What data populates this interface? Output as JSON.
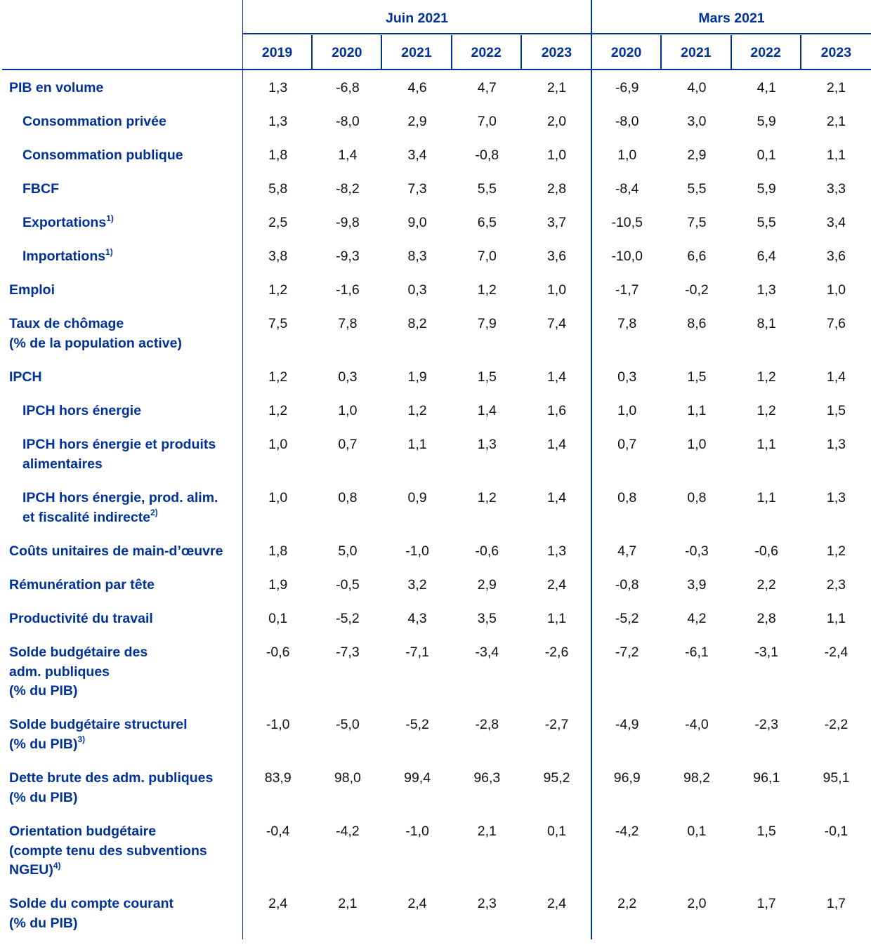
{
  "header": {
    "groups": [
      "Juin 2021",
      "Mars 2021"
    ],
    "years": [
      "2019",
      "2020",
      "2021",
      "2022",
      "2023",
      "2020",
      "2021",
      "2022",
      "2023"
    ]
  },
  "colors": {
    "accent": "#003299",
    "text": "#111111"
  },
  "rows": [
    {
      "label": [
        "PIB en volume"
      ],
      "sup": "",
      "indent": false,
      "values": [
        "1,3",
        "-6,8",
        "4,6",
        "4,7",
        "2,1",
        "-6,9",
        "4,0",
        "4,1",
        "2,1"
      ]
    },
    {
      "label": [
        "Consommation privée"
      ],
      "sup": "",
      "indent": true,
      "values": [
        "1,3",
        "-8,0",
        "2,9",
        "7,0",
        "2,0",
        "-8,0",
        "3,0",
        "5,9",
        "2,1"
      ]
    },
    {
      "label": [
        "Consommation publique"
      ],
      "sup": "",
      "indent": true,
      "values": [
        "1,8",
        "1,4",
        "3,4",
        "-0,8",
        "1,0",
        "1,0",
        "2,9",
        "0,1",
        "1,1"
      ]
    },
    {
      "label": [
        "FBCF"
      ],
      "sup": "",
      "indent": true,
      "values": [
        "5,8",
        "-8,2",
        "7,3",
        "5,5",
        "2,8",
        "-8,4",
        "5,5",
        "5,9",
        "3,3"
      ]
    },
    {
      "label": [
        "Exportations"
      ],
      "sup": "1)",
      "indent": true,
      "values": [
        "2,5",
        "-9,8",
        "9,0",
        "6,5",
        "3,7",
        "-10,5",
        "7,5",
        "5,5",
        "3,4"
      ]
    },
    {
      "label": [
        "Importations"
      ],
      "sup": "1)",
      "indent": true,
      "values": [
        "3,8",
        "-9,3",
        "8,3",
        "7,0",
        "3,6",
        "-10,0",
        "6,6",
        "6,4",
        "3,6"
      ]
    },
    {
      "label": [
        "Emploi"
      ],
      "sup": "",
      "indent": false,
      "values": [
        "1,2",
        "-1,6",
        "0,3",
        "1,2",
        "1,0",
        "-1,7",
        "-0,2",
        "1,3",
        "1,0"
      ]
    },
    {
      "label": [
        "Taux de chômage",
        "(% de la population active)"
      ],
      "sup": "",
      "indent": false,
      "values": [
        "7,5",
        "7,8",
        "8,2",
        "7,9",
        "7,4",
        "7,8",
        "8,6",
        "8,1",
        "7,6"
      ]
    },
    {
      "label": [
        "IPCH"
      ],
      "sup": "",
      "indent": false,
      "values": [
        "1,2",
        "0,3",
        "1,9",
        "1,5",
        "1,4",
        "0,3",
        "1,5",
        "1,2",
        "1,4"
      ]
    },
    {
      "label": [
        "IPCH hors énergie"
      ],
      "sup": "",
      "indent": true,
      "values": [
        "1,2",
        "1,0",
        "1,2",
        "1,4",
        "1,6",
        "1,0",
        "1,1",
        "1,2",
        "1,5"
      ]
    },
    {
      "label": [
        "IPCH hors énergie et produits",
        "alimentaires"
      ],
      "sup": "",
      "indent": true,
      "values": [
        "1,0",
        "0,7",
        "1,1",
        "1,3",
        "1,4",
        "0,7",
        "1,0",
        "1,1",
        "1,3"
      ]
    },
    {
      "label": [
        "IPCH hors énergie, prod. alim.",
        "et fiscalité indirecte"
      ],
      "sup": "2)",
      "indent": true,
      "values": [
        "1,0",
        "0,8",
        "0,9",
        "1,2",
        "1,4",
        "0,8",
        "0,8",
        "1,1",
        "1,3"
      ]
    },
    {
      "label": [
        "Coûts unitaires de main-d’œuvre"
      ],
      "sup": "",
      "indent": false,
      "values": [
        "1,8",
        "5,0",
        "-1,0",
        "-0,6",
        "1,3",
        "4,7",
        "-0,3",
        "-0,6",
        "1,2"
      ]
    },
    {
      "label": [
        "Rémunération par tête"
      ],
      "sup": "",
      "indent": false,
      "values": [
        "1,9",
        "-0,5",
        "3,2",
        "2,9",
        "2,4",
        "-0,8",
        "3,9",
        "2,2",
        "2,3"
      ]
    },
    {
      "label": [
        "Productivité du travail"
      ],
      "sup": "",
      "indent": false,
      "values": [
        "0,1",
        "-5,2",
        "4,3",
        "3,5",
        "1,1",
        "-5,2",
        "4,2",
        "2,8",
        "1,1"
      ]
    },
    {
      "label": [
        "Solde budgétaire des",
        "adm. publiques",
        "(% du PIB)"
      ],
      "sup": "",
      "indent": false,
      "values": [
        "-0,6",
        "-7,3",
        "-7,1",
        "-3,4",
        "-2,6",
        "-7,2",
        "-6,1",
        "-3,1",
        "-2,4"
      ]
    },
    {
      "label": [
        "Solde budgétaire structurel",
        "(% du PIB)"
      ],
      "sup": "3)",
      "indent": false,
      "values": [
        "-1,0",
        "-5,0",
        "-5,2",
        "-2,8",
        "-2,7",
        "-4,9",
        "-4,0",
        "-2,3",
        "-2,2"
      ]
    },
    {
      "label": [
        "Dette brute des adm. publiques",
        "(% du PIB)"
      ],
      "sup": "",
      "indent": false,
      "values": [
        "83,9",
        "98,0",
        "99,4",
        "96,3",
        "95,2",
        "96,9",
        "98,2",
        "96,1",
        "95,1"
      ]
    },
    {
      "label": [
        "Orientation budgétaire",
        "(compte tenu des subventions",
        "NGEU)"
      ],
      "sup": "4)",
      "indent": false,
      "values": [
        "-0,4",
        "-4,2",
        "-1,0",
        "2,1",
        "0,1",
        "-4,2",
        "0,1",
        "1,5",
        "-0,1"
      ]
    },
    {
      "label": [
        "Solde du compte courant",
        "(% du PIB)"
      ],
      "sup": "",
      "indent": false,
      "values": [
        "2,4",
        "2,1",
        "2,4",
        "2,3",
        "2,4",
        "2,2",
        "2,0",
        "1,7",
        "1,7"
      ]
    }
  ]
}
